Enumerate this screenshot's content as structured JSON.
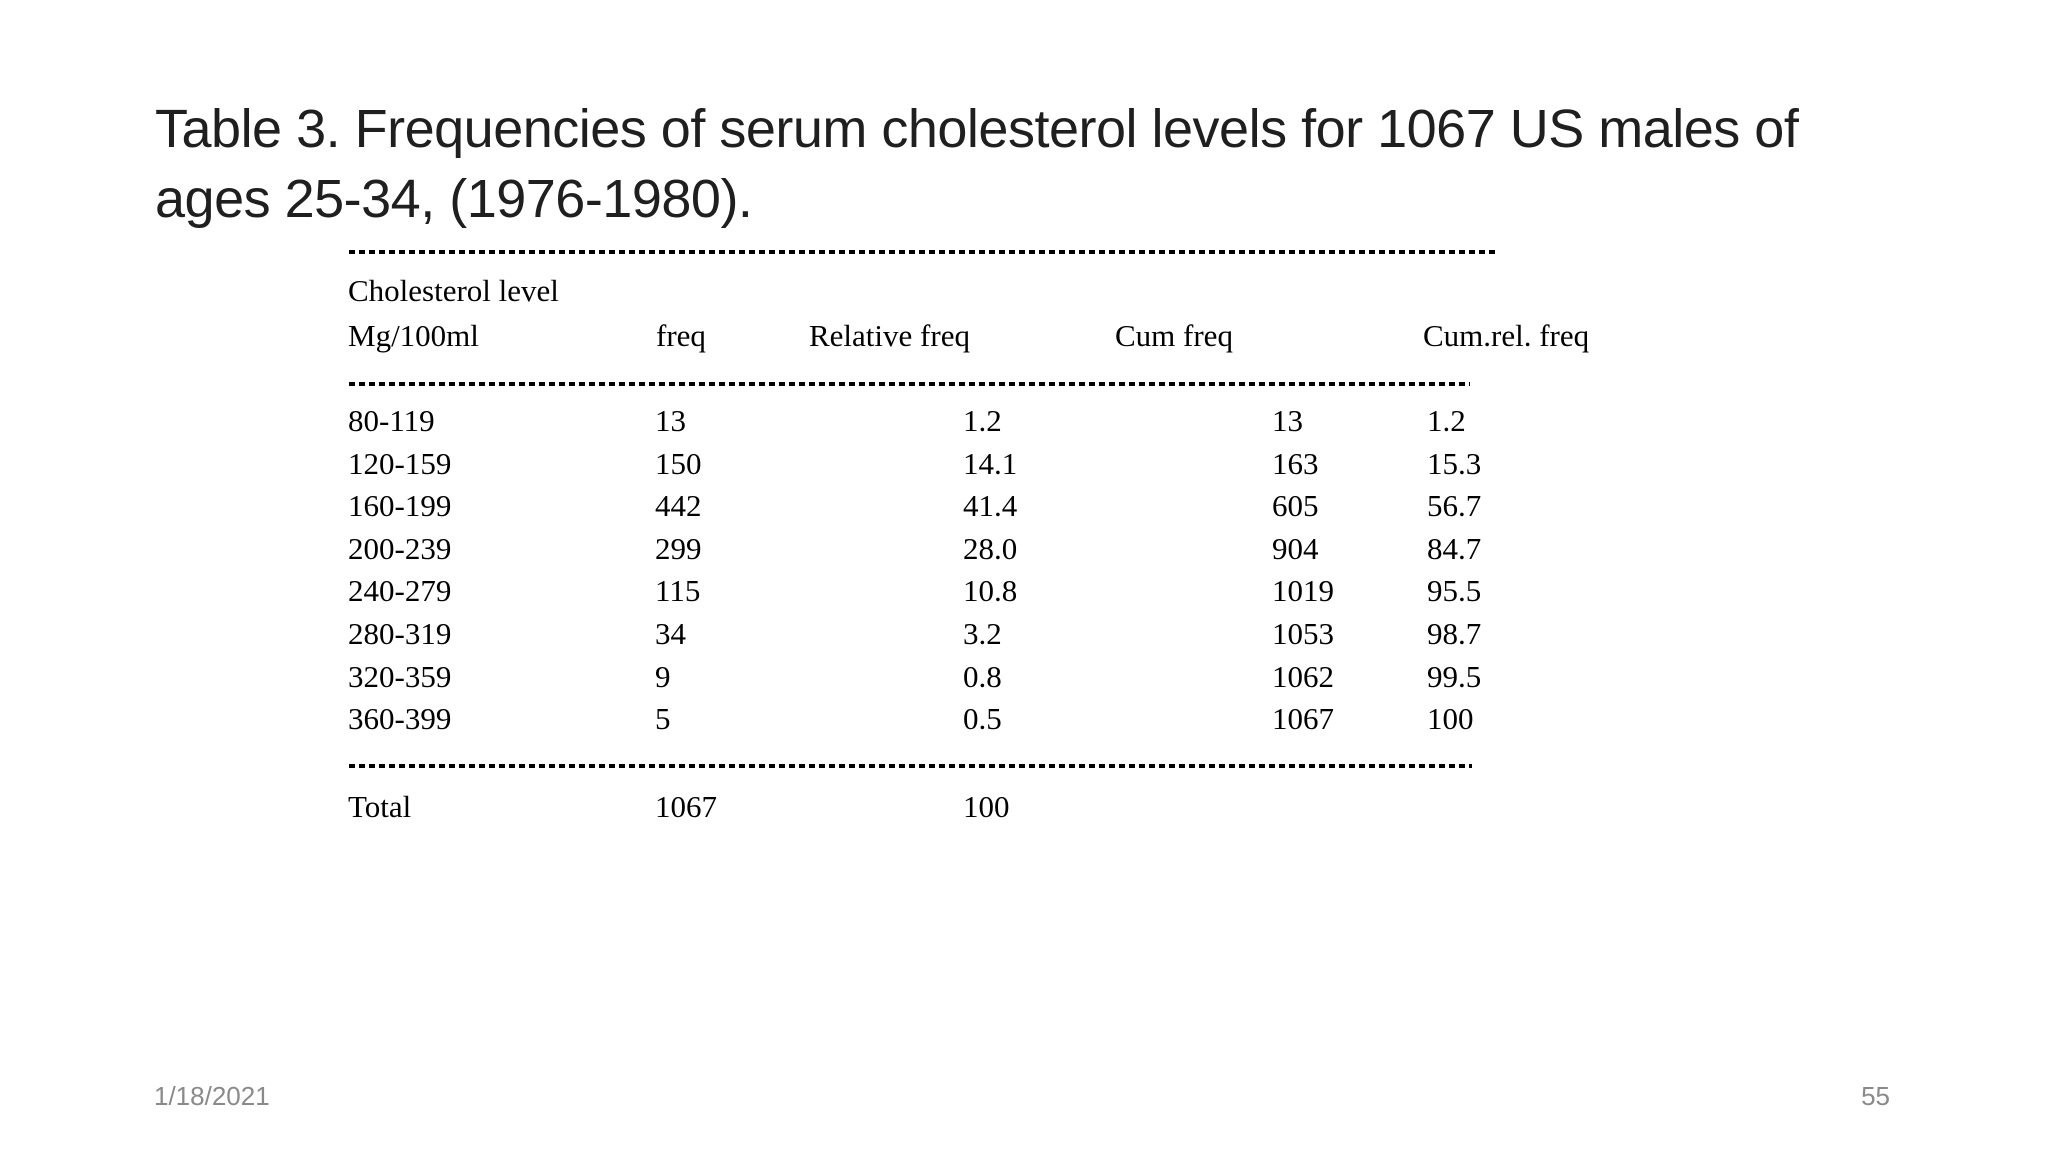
{
  "slide": {
    "title_lines": [
      "Table 3. Frequencies of serum cholesterol levels for 1067 US males of",
      "ages 25-34, (1976-1980)."
    ],
    "footer_date": "1/18/2021",
    "slide_number": "55"
  },
  "table": {
    "group_label": "Cholesterol level",
    "headers": [
      "Mg/100ml",
      "freq",
      "Relative freq",
      "Cum freq",
      "Cum.rel. freq"
    ],
    "rows": [
      [
        "80-119",
        "13",
        "1.2",
        "13",
        "1.2"
      ],
      [
        "120-159",
        "150",
        "14.1",
        "163",
        "15.3"
      ],
      [
        "160-199",
        "442",
        "41.4",
        "605",
        "56.7"
      ],
      [
        "200-239",
        "299",
        "28.0",
        "904",
        "84.7"
      ],
      [
        "240-279",
        "115",
        "10.8",
        "1019",
        "95.5"
      ],
      [
        "280-319",
        "34",
        "3.2",
        "1053",
        "98.7"
      ],
      [
        "320-359",
        "9",
        "0.8",
        "1062",
        "99.5"
      ],
      [
        "360-399",
        "5",
        "0.5",
        "1067",
        "100"
      ]
    ],
    "total": [
      "Total",
      "1067",
      "100"
    ]
  },
  "colors": {
    "background": "#ffffff",
    "table_text": "#000000",
    "title_text": "#1f1f1f",
    "footer_text": "#8a8a8a"
  }
}
